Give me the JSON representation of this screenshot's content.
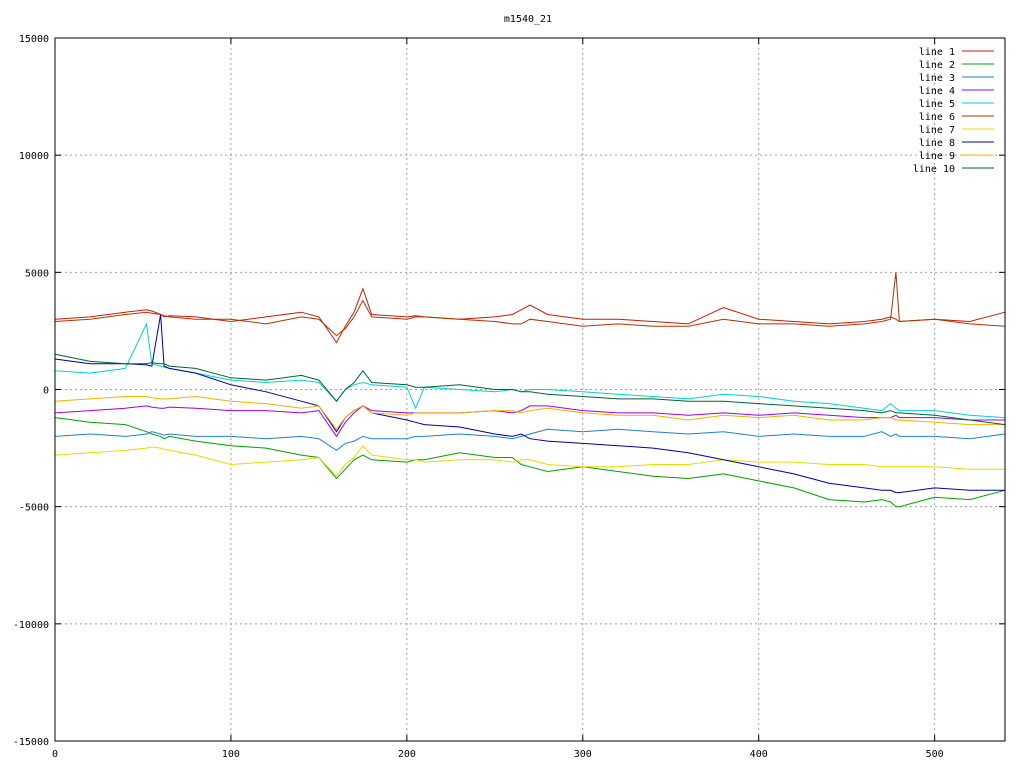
{
  "chart_data": {
    "type": "line",
    "title": "m1540_21",
    "xlabel": "",
    "ylabel": "",
    "xlim": [
      0,
      540
    ],
    "ylim": [
      -15000,
      15000
    ],
    "xticks": [
      0,
      100,
      200,
      300,
      400,
      500
    ],
    "yticks": [
      -15000,
      -10000,
      -5000,
      0,
      5000,
      10000,
      15000
    ],
    "grid": true,
    "legend_position": "top-right",
    "x": [
      0,
      20,
      40,
      52,
      55,
      60,
      62,
      65,
      80,
      100,
      120,
      140,
      150,
      160,
      165,
      170,
      175,
      180,
      200,
      205,
      210,
      230,
      250,
      260,
      265,
      270,
      280,
      300,
      320,
      340,
      360,
      380,
      400,
      420,
      440,
      460,
      470,
      475,
      478,
      480,
      500,
      520,
      540
    ],
    "series": [
      {
        "name": "line 1",
        "color": "#c41e00",
        "values": [
          3000,
          3100,
          3300,
          3400,
          3350,
          3200,
          3100,
          3150,
          3100,
          2900,
          3100,
          3300,
          3100,
          2000,
          2700,
          3300,
          4300,
          3200,
          3100,
          3150,
          3100,
          3000,
          3100,
          3200,
          3400,
          3600,
          3200,
          3000,
          3000,
          2900,
          2800,
          3500,
          3000,
          2900,
          2800,
          2900,
          3000,
          3100,
          3000,
          2900,
          3000,
          2900,
          3300
        ]
      },
      {
        "name": "line 2",
        "color": "#00a000",
        "values": [
          -1200,
          -1400,
          -1500,
          -1800,
          -1900,
          -2000,
          -2100,
          -2000,
          -2200,
          -2400,
          -2500,
          -2800,
          -2900,
          -3800,
          -3400,
          -3000,
          -2800,
          -3000,
          -3100,
          -3000,
          -3000,
          -2700,
          -2900,
          -2900,
          -3200,
          -3300,
          -3500,
          -3300,
          -3500,
          -3700,
          -3800,
          -3600,
          -3900,
          -4200,
          -4700,
          -4800,
          -4700,
          -4800,
          -5000,
          -5000,
          -4600,
          -4700,
          -4300
        ]
      },
      {
        "name": "line 3",
        "color": "#1e82c8",
        "values": [
          -2000,
          -1900,
          -2000,
          -1900,
          -1800,
          -1900,
          -1950,
          -1900,
          -2000,
          -2000,
          -2100,
          -2000,
          -2100,
          -2600,
          -2300,
          -2200,
          -2000,
          -2100,
          -2100,
          -2000,
          -2000,
          -1900,
          -2000,
          -2100,
          -2000,
          -1900,
          -1700,
          -1800,
          -1700,
          -1800,
          -1900,
          -1800,
          -2000,
          -1900,
          -2000,
          -2000,
          -1800,
          -2000,
          -1900,
          -2000,
          -2000,
          -2100,
          -1900
        ]
      },
      {
        "name": "line 4",
        "color": "#a000e0",
        "values": [
          -1000,
          -900,
          -800,
          -700,
          -750,
          -800,
          -800,
          -750,
          -800,
          -900,
          -900,
          -1000,
          -900,
          -2000,
          -1400,
          -1000,
          -700,
          -900,
          -1000,
          -1000,
          -1000,
          -1000,
          -900,
          -1000,
          -900,
          -700,
          -700,
          -900,
          -1000,
          -1000,
          -1100,
          -1000,
          -1100,
          -1000,
          -1100,
          -1200,
          -1200,
          -1200,
          -1100,
          -1200,
          -1200,
          -1300,
          -1300
        ]
      },
      {
        "name": "line 5",
        "color": "#00d2d2",
        "values": [
          800,
          700,
          900,
          2800,
          1100,
          1000,
          950,
          900,
          700,
          400,
          300,
          400,
          300,
          -500,
          0,
          200,
          300,
          200,
          100,
          -800,
          100,
          0,
          -100,
          0,
          -100,
          0,
          0,
          -100,
          -200,
          -300,
          -400,
          -200,
          -300,
          -500,
          -600,
          -800,
          -900,
          -600,
          -800,
          -900,
          -900,
          -1100,
          -1200
        ]
      },
      {
        "name": "line 6",
        "color": "#b43200",
        "values": [
          2900,
          3000,
          3200,
          3300,
          3250,
          3200,
          3150,
          3100,
          3000,
          3000,
          2800,
          3100,
          3000,
          2300,
          2600,
          3100,
          3800,
          3100,
          3000,
          3100,
          3100,
          3000,
          2900,
          2800,
          2800,
          3000,
          2900,
          2700,
          2800,
          2700,
          2700,
          3000,
          2800,
          2800,
          2700,
          2800,
          2900,
          3000,
          5000,
          2900,
          3000,
          2800,
          2700
        ]
      },
      {
        "name": "line 7",
        "color": "#e6dc00",
        "values": [
          -2800,
          -2700,
          -2600,
          -2500,
          -2450,
          -2500,
          -2550,
          -2600,
          -2800,
          -3200,
          -3100,
          -3000,
          -2900,
          -3700,
          -3200,
          -2900,
          -2400,
          -2800,
          -3000,
          -3000,
          -3100,
          -3000,
          -3000,
          -3100,
          -3000,
          -3000,
          -3200,
          -3300,
          -3300,
          -3200,
          -3200,
          -3000,
          -3100,
          -3100,
          -3200,
          -3200,
          -3300,
          -3300,
          -3300,
          -3300,
          -3300,
          -3400,
          -3400
        ]
      },
      {
        "name": "line 8",
        "color": "#0000a0",
        "values": [
          1300,
          1100,
          1100,
          1050,
          1000,
          3200,
          1000,
          900,
          700,
          200,
          -100,
          -500,
          -700,
          -1800,
          -1200,
          -900,
          -700,
          -1000,
          -1300,
          -1400,
          -1500,
          -1600,
          -1900,
          -2000,
          -1900,
          -2100,
          -2200,
          -2300,
          -2400,
          -2500,
          -2700,
          -3000,
          -3300,
          -3600,
          -4000,
          -4200,
          -4300,
          -4300,
          -4400,
          -4400,
          -4200,
          -4300,
          -4300
        ]
      },
      {
        "name": "line 9",
        "color": "#f0b400",
        "values": [
          -500,
          -400,
          -300,
          -300,
          -350,
          -400,
          -400,
          -400,
          -300,
          -500,
          -600,
          -800,
          -700,
          -1700,
          -1200,
          -900,
          -700,
          -1000,
          -1100,
          -1000,
          -1000,
          -1000,
          -900,
          -900,
          -1000,
          -900,
          -800,
          -1000,
          -1100,
          -1100,
          -1300,
          -1100,
          -1200,
          -1100,
          -1300,
          -1300,
          -1200,
          -1200,
          -1300,
          -1300,
          -1400,
          -1500,
          -1500
        ]
      },
      {
        "name": "line 10",
        "color": "#006432",
        "values": [
          1500,
          1200,
          1100,
          1100,
          1150,
          1100,
          1100,
          1000,
          900,
          500,
          400,
          600,
          400,
          -500,
          0,
          300,
          800,
          300,
          200,
          100,
          100,
          200,
          0,
          0,
          -100,
          -100,
          -200,
          -300,
          -400,
          -400,
          -500,
          -500,
          -600,
          -700,
          -800,
          -900,
          -1000,
          -900,
          -1000,
          -1000,
          -1100,
          -1300,
          -1500
        ]
      }
    ]
  }
}
